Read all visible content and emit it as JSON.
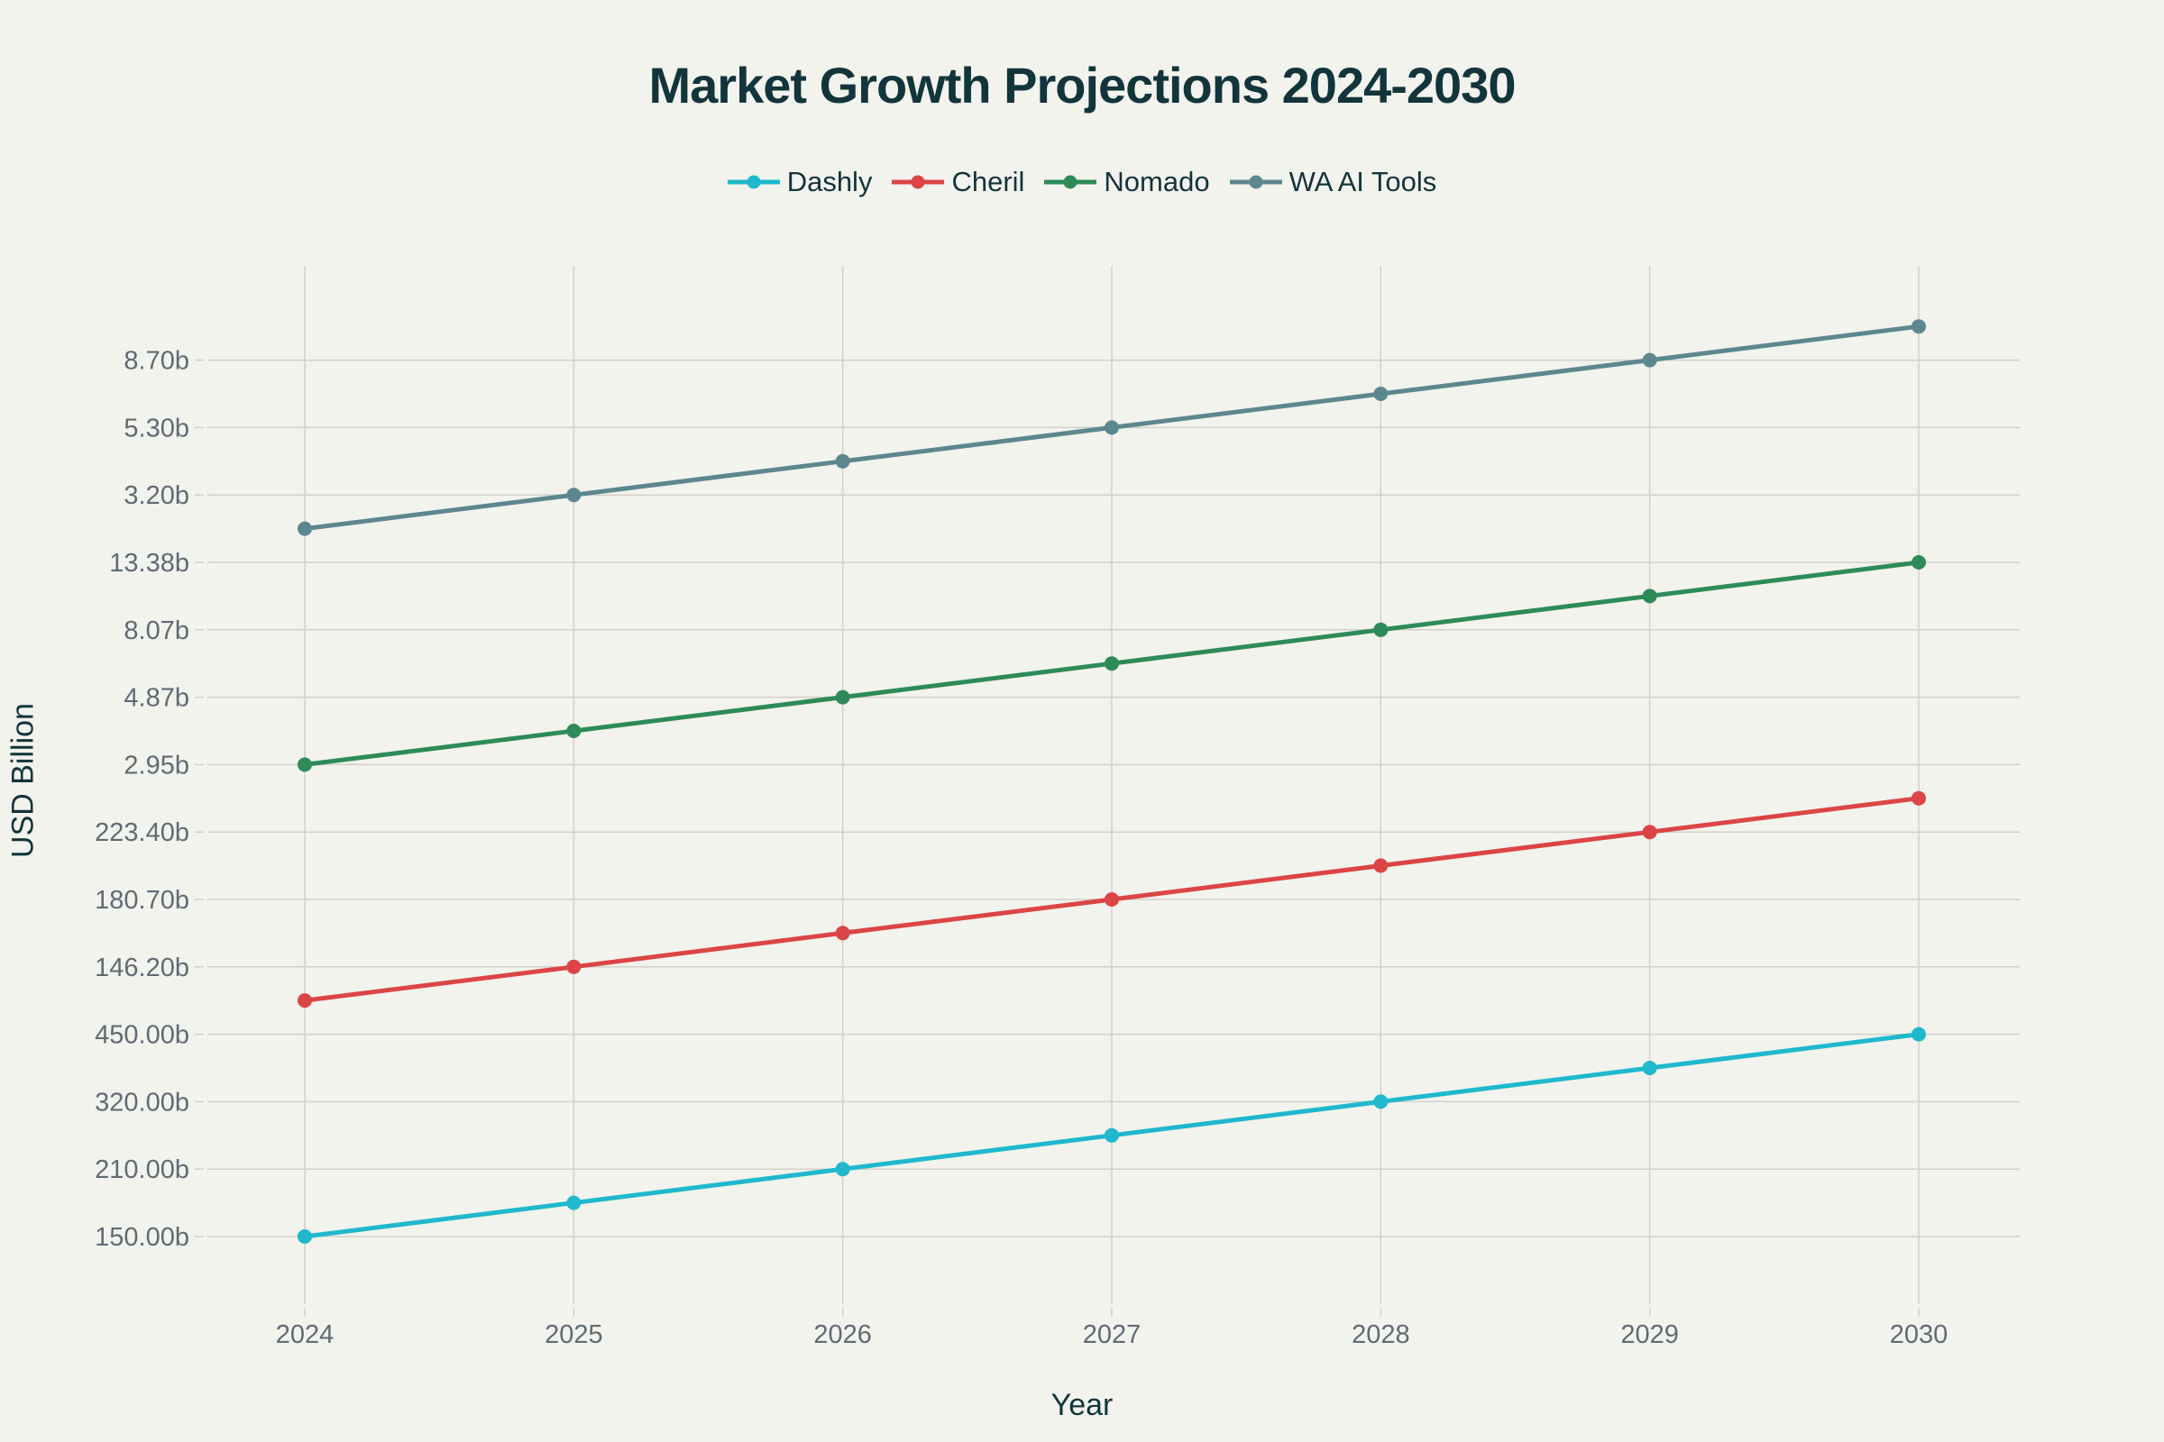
{
  "chart_data": {
    "type": "line",
    "title": "Market Growth Projections 2024-2030",
    "xlabel": "Year",
    "ylabel": "USD Billion",
    "x": [
      2024,
      2025,
      2026,
      2027,
      2028,
      2029,
      2030
    ],
    "y_ticks": [
      "150.00b",
      "210.00b",
      "320.00b",
      "450.00b",
      "146.20b",
      "180.70b",
      "223.40b",
      "2.95b",
      "4.87b",
      "8.07b",
      "13.38b",
      "3.20b",
      "5.30b",
      "8.70b"
    ],
    "grid": true,
    "legend_position": "top",
    "series": [
      {
        "name": "Dashly",
        "color": "#1fb8cd",
        "tick_values": [
          150,
          210,
          320,
          450
        ],
        "values": [
          150,
          180,
          210,
          265,
          320,
          385,
          450
        ]
      },
      {
        "name": "Cheril",
        "color": "#db4545",
        "tick_values": [
          146.2,
          180.7,
          223.4
        ],
        "values": [
          129.0,
          146.2,
          163.5,
          180.7,
          202.1,
          223.4,
          244.8
        ]
      },
      {
        "name": "Nomado",
        "color": "#2e8b57",
        "tick_values": [
          2.95,
          4.87,
          8.07,
          13.38
        ],
        "values": [
          2.95,
          3.91,
          4.87,
          6.47,
          8.07,
          10.73,
          13.38
        ]
      },
      {
        "name": "WA AI Tools",
        "color": "#5d878f",
        "tick_values": [
          3.2,
          5.3,
          8.7
        ],
        "values": [
          2.15,
          3.2,
          4.25,
          5.3,
          7.0,
          8.7,
          10.4
        ]
      }
    ]
  }
}
